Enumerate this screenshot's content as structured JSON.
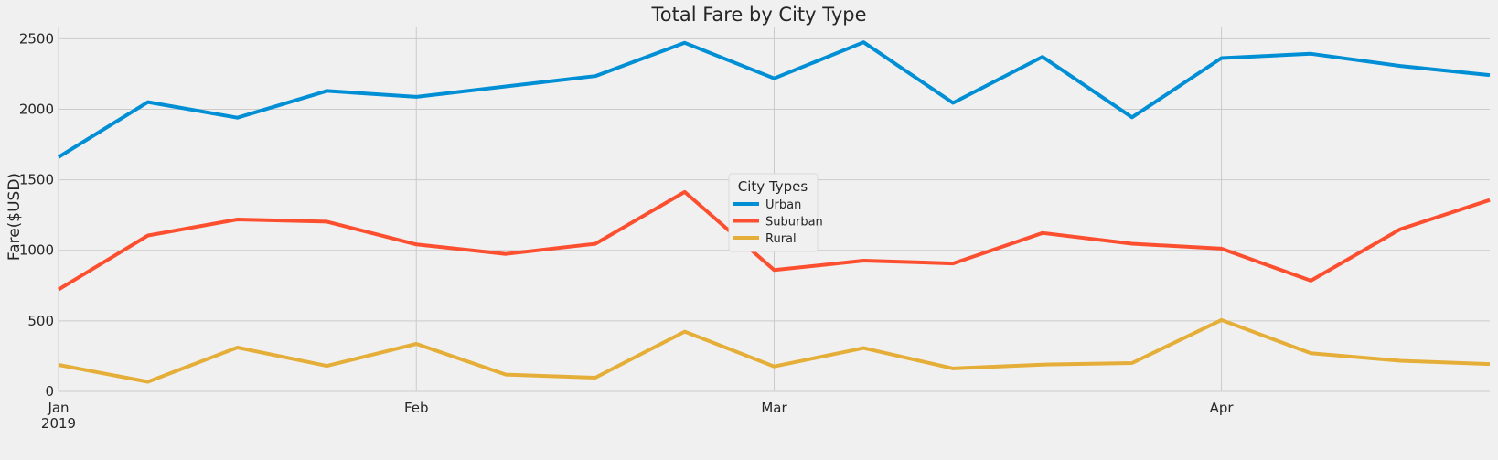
{
  "chart_data": {
    "type": "line",
    "title": "Total Fare by City Type",
    "xlabel": "",
    "ylabel": "Fare($USD)",
    "x_dates": [
      "2019-01-06",
      "2019-01-13",
      "2019-01-20",
      "2019-01-27",
      "2019-02-03",
      "2019-02-10",
      "2019-02-17",
      "2019-02-24",
      "2019-03-03",
      "2019-03-10",
      "2019-03-17",
      "2019-03-24",
      "2019-03-31",
      "2019-04-07",
      "2019-04-14",
      "2019-04-21",
      "2019-04-28"
    ],
    "xlim": [
      "2019-01-06",
      "2019-04-28"
    ],
    "x_ticks": [
      {
        "date": "2019-01-06",
        "label": "Jan",
        "sublabel": "2019"
      },
      {
        "date": "2019-02-03",
        "label": "Feb",
        "sublabel": ""
      },
      {
        "date": "2019-03-03",
        "label": "Mar",
        "sublabel": ""
      },
      {
        "date": "2019-04-07",
        "label": "Apr",
        "sublabel": ""
      }
    ],
    "ylim": [
      0,
      2580
    ],
    "y_ticks": [
      0,
      500,
      1000,
      1500,
      2000,
      2500
    ],
    "grid": true,
    "legend": {
      "title": "City Types",
      "position": "center"
    },
    "series": [
      {
        "name": "Urban",
        "color": "#008fd5",
        "values": [
          1661,
          2051,
          1940,
          2130,
          2088,
          2162,
          2235,
          2471,
          2219,
          2475,
          2045,
          2372,
          1943,
          2363,
          2393,
          2307,
          2242
        ]
      },
      {
        "name": "Suburban",
        "color": "#fc4f30",
        "values": [
          722,
          1105,
          1219,
          1203,
          1042,
          974,
          1046,
          1414,
          860,
          927,
          907,
          1123,
          1047,
          1012,
          785,
          1150,
          1357
        ]
      },
      {
        "name": "Rural",
        "color": "#e5ae38",
        "values": [
          188,
          68,
          311,
          181,
          337,
          119,
          97,
          424,
          177,
          307,
          163,
          190,
          201,
          506,
          270,
          217,
          194
        ]
      }
    ]
  }
}
